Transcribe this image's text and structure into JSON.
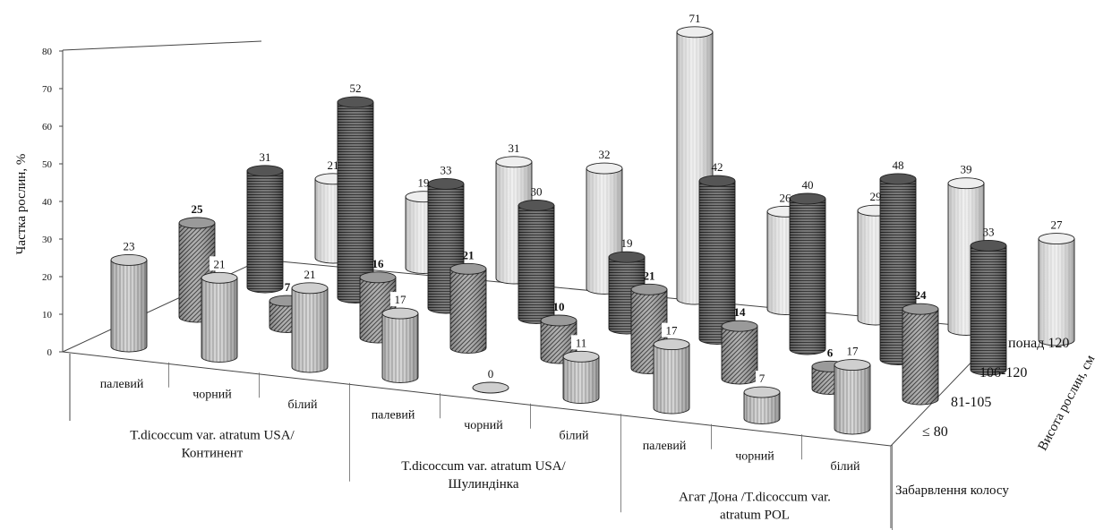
{
  "chart_data": {
    "type": "bar3d",
    "ylabel": "Частка рослин, %",
    "ylim": [
      0,
      80
    ],
    "yticks": [
      "0",
      "10",
      "20",
      "30",
      "40",
      "50",
      "60",
      "70",
      "80"
    ],
    "depth_axis_label": "Висота рослин, см",
    "depth_categories": [
      "≤ 80",
      "81-105",
      "106-120",
      "понад 120"
    ],
    "color_axis_label": "Забарвлення колосу",
    "colors": [
      "палевий",
      "чорний",
      "білий"
    ],
    "groups": [
      {
        "name": "T.dicoccum var. atratum USA/ Континент",
        "values": {
          "≤ 80": [
            23,
            21,
            21
          ],
          "81-105": [
            25,
            7,
            16
          ],
          "106-120": [
            31,
            52,
            33
          ],
          "понад 120": [
            21,
            19,
            31
          ]
        }
      },
      {
        "name": "T.dicoccum var. atratum USA/ Шулиндінка",
        "values": {
          "≤ 80": [
            17,
            0,
            11
          ],
          "81-105": [
            21,
            10,
            21
          ],
          "106-120": [
            30,
            19,
            42
          ],
          "понад 120": [
            32,
            71,
            26
          ]
        }
      },
      {
        "name": "Агат Дона /T.dicoccum var. atratum POL",
        "values": {
          "≤ 80": [
            17,
            7,
            17
          ],
          "81-105": [
            14,
            6,
            24
          ],
          "106-120": [
            40,
            48,
            33
          ],
          "понад 120": [
            29,
            39,
            27
          ]
        }
      }
    ],
    "group_label_lines": [
      [
        "T.dicoccum var. atratum USA/",
        "Континент"
      ],
      [
        "T.dicoccum var. atratum USA/",
        "Шулиндінка"
      ],
      [
        "Агат Дона /T.dicoccum var.",
        "atratum POL"
      ]
    ],
    "bold_value_rows": [
      "81-105"
    ],
    "grid": false,
    "series_fill_colors": {
      "≤ 80": "#cfcfcf",
      "81-105": "#9a9a9a",
      "106-120": "#555555",
      "понад 120": "#eeeeee"
    }
  }
}
